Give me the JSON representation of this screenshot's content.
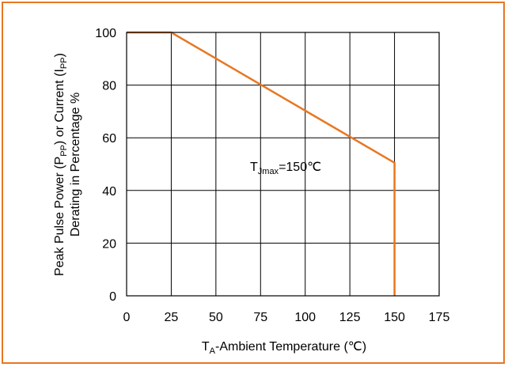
{
  "chart_data": {
    "type": "line",
    "xlabel": {
      "main": "T",
      "sub": "A",
      "rest": "-Ambient Temperature (℃)"
    },
    "ylabel": {
      "line1": {
        "p1": "Peak Pulse Power (P",
        "sub1": "PP",
        "p2": ") or Current (I",
        "sub2": "PP",
        "p3": ")"
      },
      "line2": "Derating in Percentage %"
    },
    "xlim": [
      0,
      175
    ],
    "ylim": [
      0,
      100
    ],
    "xticks": [
      0,
      25,
      50,
      75,
      100,
      125,
      150,
      175
    ],
    "yticks": [
      0,
      20,
      40,
      60,
      80,
      100
    ],
    "grid": true,
    "series": [
      {
        "color": "#E87722",
        "points": [
          [
            0,
            100
          ],
          [
            25,
            100
          ],
          [
            150,
            50.5
          ],
          [
            150,
            0
          ]
        ]
      }
    ],
    "annotations": [
      {
        "main": "T",
        "sub": "Jmax",
        "rest": "=150℃",
        "x": 150,
        "y": 50
      }
    ]
  }
}
